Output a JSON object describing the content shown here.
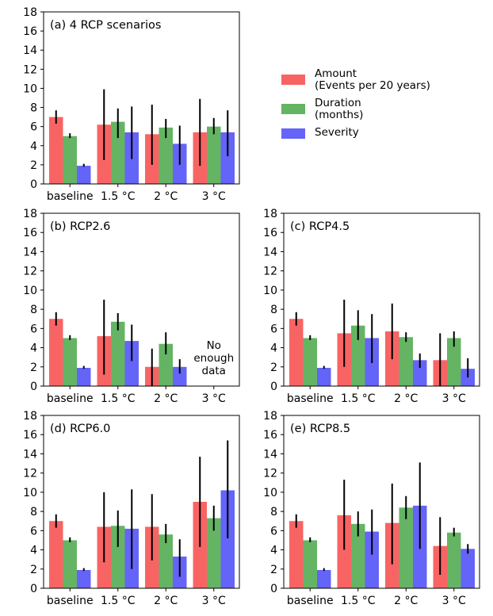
{
  "legend": {
    "series": [
      {
        "name": "Amount",
        "sub": "(Events per 20 years)",
        "color": "#f86464"
      },
      {
        "name": "Duration",
        "sub": "(months)",
        "color": "#64b464"
      },
      {
        "name": "Severity",
        "sub": "",
        "color": "#6464f8"
      }
    ]
  },
  "chart_data": [
    {
      "type": "bar",
      "title": "(a) 4 RCP scenarios",
      "categories": [
        "baseline",
        "1.5 °C",
        "2 °C",
        "3 °C"
      ],
      "ylim": [
        0,
        18
      ],
      "yticks": [
        0,
        2,
        4,
        6,
        8,
        10,
        12,
        14,
        16,
        18
      ],
      "series": [
        {
          "name": "Amount",
          "values": [
            7.0,
            6.2,
            5.2,
            5.4
          ],
          "err_low": [
            6.3,
            2.5,
            2.0,
            1.9
          ],
          "err_high": [
            7.7,
            9.9,
            8.3,
            8.9
          ]
        },
        {
          "name": "Duration",
          "values": [
            5.0,
            6.5,
            5.9,
            6.0
          ],
          "err_low": [
            4.8,
            4.8,
            4.8,
            5.2
          ],
          "err_high": [
            5.3,
            7.9,
            6.8,
            6.9
          ]
        },
        {
          "name": "Severity",
          "values": [
            1.9,
            5.4,
            4.2,
            5.4
          ],
          "err_low": [
            1.8,
            2.6,
            2.0,
            2.9
          ],
          "err_high": [
            2.1,
            8.1,
            6.1,
            7.7
          ]
        }
      ],
      "annotations": []
    },
    {
      "type": "bar",
      "title": "(b) RCP2.6",
      "categories": [
        "baseline",
        "1.5 °C",
        "2 °C",
        "3 °C"
      ],
      "ylim": [
        0,
        18
      ],
      "yticks": [
        0,
        2,
        4,
        6,
        8,
        10,
        12,
        14,
        16,
        18
      ],
      "series": [
        {
          "name": "Amount",
          "values": [
            7.0,
            5.2,
            2.0,
            null
          ],
          "err_low": [
            6.3,
            1.2,
            0,
            null
          ],
          "err_high": [
            7.7,
            9.0,
            3.9,
            null
          ]
        },
        {
          "name": "Duration",
          "values": [
            5.0,
            6.7,
            4.4,
            null
          ],
          "err_low": [
            4.8,
            5.8,
            3.3,
            null
          ],
          "err_high": [
            5.3,
            7.6,
            5.6,
            null
          ]
        },
        {
          "name": "Severity",
          "values": [
            1.9,
            4.7,
            2.0,
            null
          ],
          "err_low": [
            1.8,
            2.6,
            1.3,
            null
          ],
          "err_high": [
            2.1,
            6.4,
            2.8,
            null
          ]
        }
      ],
      "annotations": [
        {
          "category": "3 °C",
          "lines": [
            "No",
            "enough",
            "data"
          ]
        }
      ]
    },
    {
      "type": "bar",
      "title": "(c) RCP4.5",
      "categories": [
        "baseline",
        "1.5 °C",
        "2 °C",
        "3 °C"
      ],
      "ylim": [
        0,
        18
      ],
      "yticks": [
        0,
        2,
        4,
        6,
        8,
        10,
        12,
        14,
        16,
        18
      ],
      "series": [
        {
          "name": "Amount",
          "values": [
            7.0,
            5.5,
            5.7,
            2.7
          ],
          "err_low": [
            6.3,
            2.0,
            2.8,
            0
          ],
          "err_high": [
            7.7,
            9.0,
            8.6,
            5.5
          ]
        },
        {
          "name": "Duration",
          "values": [
            5.0,
            6.3,
            5.1,
            5.0
          ],
          "err_low": [
            4.8,
            4.8,
            4.6,
            4.1
          ],
          "err_high": [
            5.3,
            7.9,
            5.6,
            5.7
          ]
        },
        {
          "name": "Severity",
          "values": [
            1.9,
            5.0,
            2.7,
            1.8
          ],
          "err_low": [
            1.8,
            2.4,
            1.9,
            0.9
          ],
          "err_high": [
            2.1,
            7.5,
            3.4,
            2.9
          ]
        }
      ],
      "annotations": []
    },
    {
      "type": "bar",
      "title": "(d) RCP6.0",
      "categories": [
        "baseline",
        "1.5 °C",
        "2 °C",
        "3 °C"
      ],
      "ylim": [
        0,
        18
      ],
      "yticks": [
        0,
        2,
        4,
        6,
        8,
        10,
        12,
        14,
        16,
        18
      ],
      "series": [
        {
          "name": "Amount",
          "values": [
            7.0,
            6.4,
            6.4,
            9.0
          ],
          "err_low": [
            6.3,
            2.7,
            2.9,
            4.3
          ],
          "err_high": [
            7.7,
            10.0,
            9.8,
            13.7
          ]
        },
        {
          "name": "Duration",
          "values": [
            5.0,
            6.5,
            5.6,
            7.3
          ],
          "err_low": [
            4.8,
            4.3,
            4.7,
            6.0
          ],
          "err_high": [
            5.3,
            8.1,
            6.7,
            8.6
          ]
        },
        {
          "name": "Severity",
          "values": [
            1.9,
            6.2,
            3.3,
            10.2
          ],
          "err_low": [
            1.8,
            2.0,
            1.2,
            5.2
          ],
          "err_high": [
            2.1,
            10.3,
            5.1,
            15.4
          ]
        }
      ],
      "annotations": []
    },
    {
      "type": "bar",
      "title": "(e) RCP8.5",
      "categories": [
        "baseline",
        "1.5 °C",
        "2 °C",
        "3 °C"
      ],
      "ylim": [
        0,
        18
      ],
      "yticks": [
        0,
        2,
        4,
        6,
        8,
        10,
        12,
        14,
        16,
        18
      ],
      "series": [
        {
          "name": "Amount",
          "values": [
            7.0,
            7.6,
            6.8,
            4.4
          ],
          "err_low": [
            6.3,
            4.0,
            2.5,
            1.4
          ],
          "err_high": [
            7.7,
            11.3,
            10.9,
            7.4
          ]
        },
        {
          "name": "Duration",
          "values": [
            5.0,
            6.7,
            8.4,
            5.8
          ],
          "err_low": [
            4.8,
            5.4,
            7.2,
            5.4
          ],
          "err_high": [
            5.3,
            8.0,
            9.6,
            6.3
          ]
        },
        {
          "name": "Severity",
          "values": [
            1.9,
            5.9,
            8.6,
            4.1
          ],
          "err_low": [
            1.8,
            3.5,
            4.1,
            3.6
          ],
          "err_high": [
            2.1,
            8.2,
            13.1,
            4.6
          ]
        }
      ],
      "annotations": []
    }
  ]
}
